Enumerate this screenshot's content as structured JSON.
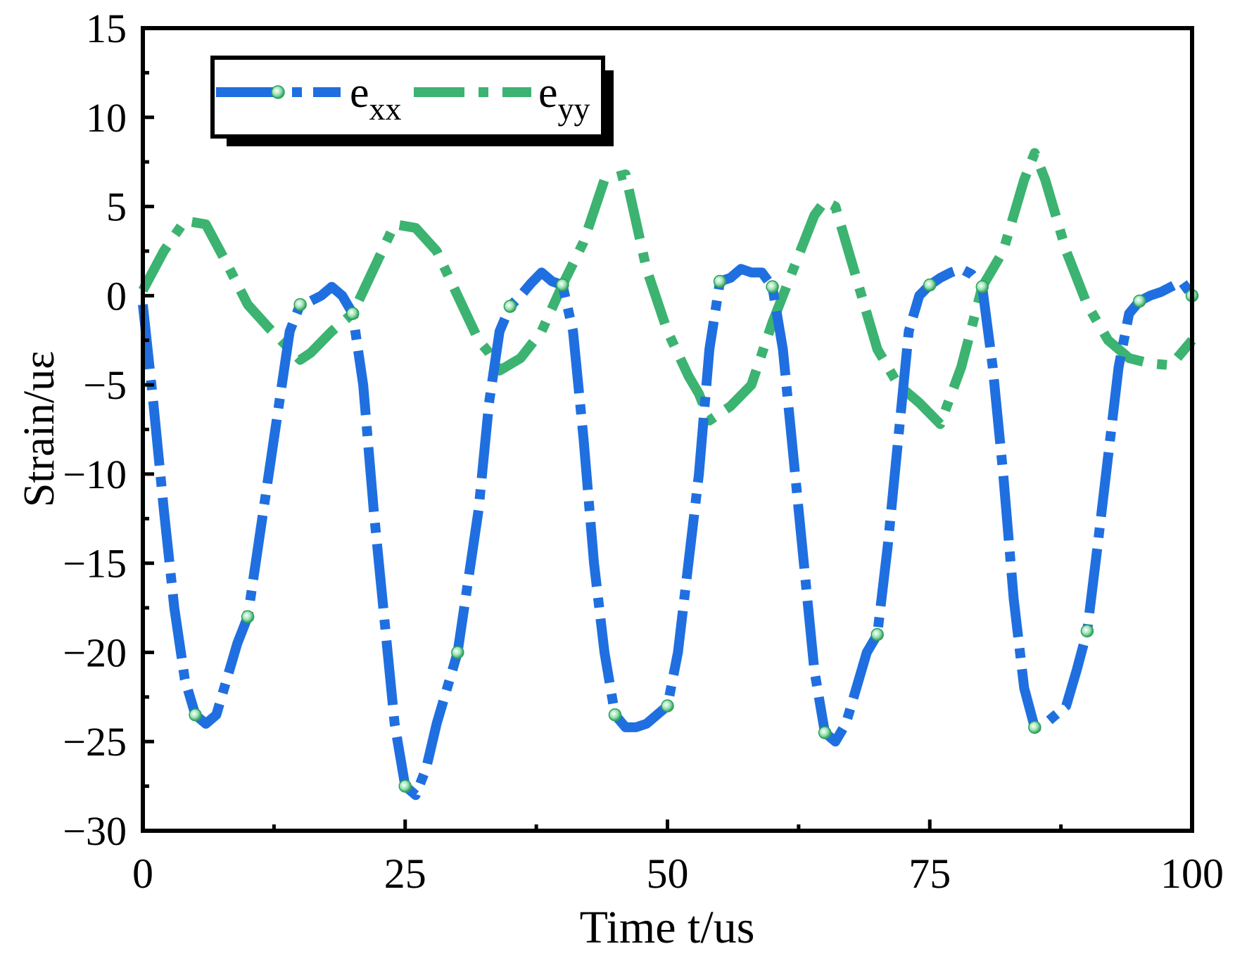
{
  "chart_data": {
    "type": "line",
    "title": "",
    "xlabel": "Time t/us",
    "ylabel": "Strain/uε",
    "xlim": [
      0,
      100
    ],
    "ylim": [
      -30,
      15
    ],
    "x_ticks": [
      0,
      25,
      50,
      75,
      100
    ],
    "y_ticks": [
      15,
      10,
      5,
      0,
      -5,
      -10,
      -15,
      -20,
      -25,
      -30
    ],
    "x_tick_labels": [
      "0",
      "25",
      "50",
      "75",
      "100"
    ],
    "y_tick_labels": [
      "15",
      "10",
      "5",
      "0",
      "−5",
      "−10",
      "−15",
      "−20",
      "−25",
      "−30"
    ],
    "grid": false,
    "legend_position": "top-left",
    "series": [
      {
        "name": "e",
        "name_sub": "xx",
        "color": "#1f6fe0",
        "line_style": "dash-dot",
        "marker_color": "#3cb371",
        "x": [
          0,
          1,
          2,
          3,
          4,
          5,
          6,
          7,
          8,
          9,
          10,
          11,
          12,
          13,
          14,
          15,
          16,
          17,
          18,
          19,
          20,
          21,
          22,
          23,
          24,
          25,
          26,
          27,
          28,
          29,
          30,
          31,
          32,
          33,
          34,
          35,
          36,
          37,
          38,
          39,
          40,
          41,
          42,
          43,
          44,
          45,
          46,
          47,
          48,
          49,
          50,
          51,
          52,
          53,
          54,
          55,
          56,
          57,
          58,
          59,
          60,
          61,
          62,
          63,
          64,
          65,
          66,
          67,
          68,
          69,
          70,
          71,
          72,
          73,
          74,
          75,
          76,
          77,
          78,
          79,
          80,
          81,
          82,
          83,
          84,
          85,
          86,
          87,
          88,
          89,
          90,
          91,
          92,
          93,
          94,
          95,
          96,
          97,
          98,
          99,
          100
        ],
        "y": [
          -0.5,
          -6,
          -12,
          -17.5,
          -21.5,
          -23.5,
          -24,
          -23.5,
          -21.5,
          -19.5,
          -18,
          -14,
          -10,
          -6,
          -2,
          -0.5,
          -0.3,
          0,
          0.5,
          0,
          -1,
          -5,
          -12,
          -18,
          -24,
          -27.5,
          -28,
          -26.5,
          -24,
          -22,
          -20,
          -16,
          -12,
          -6,
          -2,
          -0.6,
          0,
          0.7,
          1.3,
          0.8,
          0.6,
          -2,
          -8,
          -15,
          -20,
          -23.5,
          -24.2,
          -24.2,
          -24,
          -23.5,
          -23,
          -20,
          -15,
          -10,
          -3,
          0.8,
          1,
          1.5,
          1.3,
          1.3,
          0.5,
          -3,
          -9,
          -15,
          -21,
          -24.5,
          -25,
          -24,
          -22,
          -20,
          -19,
          -14,
          -8,
          -2,
          0,
          0.6,
          1,
          1.3,
          1.5,
          1.2,
          0.5,
          -4,
          -10,
          -17,
          -22,
          -24.2,
          -24,
          -23.5,
          -23,
          -21,
          -18.8,
          -14,
          -9,
          -4,
          -1,
          -0.3,
          0,
          0.2,
          0.5,
          0.8,
          0
        ]
      },
      {
        "name": "e",
        "name_sub": "yy",
        "color": "#3cb371",
        "line_style": "long-dash-dot",
        "x": [
          0,
          2,
          4,
          6,
          8,
          10,
          12,
          14,
          15,
          16,
          18,
          20,
          22,
          24,
          26,
          28,
          30,
          32,
          33,
          34,
          36,
          38,
          40,
          42,
          44,
          46,
          48,
          50,
          52,
          53,
          54,
          56,
          58,
          60,
          62,
          64,
          65,
          66,
          68,
          70,
          72,
          74,
          76,
          78,
          80,
          82,
          84,
          85,
          86,
          88,
          90,
          92,
          94,
          96,
          98,
          100
        ],
        "y": [
          0.3,
          2.5,
          4.2,
          4,
          1.8,
          -0.5,
          -1.8,
          -3,
          -3.6,
          -3.2,
          -2,
          -1,
          1.5,
          4,
          3.8,
          2.5,
          0,
          -2.5,
          -3.2,
          -4.2,
          -3.5,
          -2,
          0.6,
          3,
          6.5,
          6.8,
          1.5,
          -2,
          -4.5,
          -5.5,
          -7,
          -6.2,
          -5,
          -1.5,
          1.5,
          4.5,
          5.3,
          5,
          1,
          -3,
          -5,
          -6,
          -7.2,
          -4,
          0.5,
          2.5,
          6.5,
          8,
          6.5,
          2.5,
          -0.5,
          -2.5,
          -3.5,
          -3.8,
          -3.9,
          -2.5
        ]
      }
    ]
  }
}
